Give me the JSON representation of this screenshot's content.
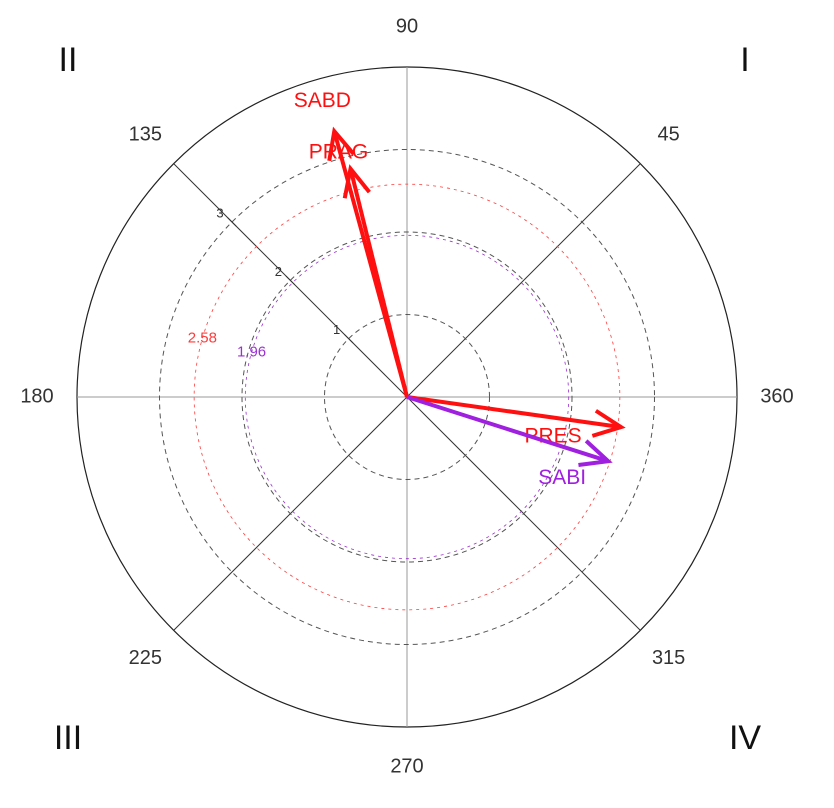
{
  "chart_data": {
    "type": "polar",
    "angle_ticks": [
      360,
      45,
      90,
      135,
      180,
      225,
      270,
      315
    ],
    "rlim": [
      0,
      4
    ],
    "rticks": [
      1,
      2,
      3
    ],
    "thresholds": [
      {
        "value": 2.58,
        "color": "#ff3b3b"
      },
      {
        "value": 1.96,
        "color": "#9b30d0"
      }
    ],
    "quadrants": [
      "I",
      "II",
      "III",
      "IV"
    ],
    "series": [
      {
        "name": "SABD",
        "color": "#ff1010",
        "angle": 105.3,
        "magnitude": 3.34
      },
      {
        "name": "PRAG",
        "color": "#ff1010",
        "angle": 103.9,
        "magnitude": 2.85
      },
      {
        "name": "PRES",
        "color": "#ff1010",
        "angle": 352,
        "magnitude": 2.62
      },
      {
        "name": "SABI",
        "color": "#a020e0",
        "angle": 342.3,
        "magnitude": 2.56
      }
    ]
  }
}
